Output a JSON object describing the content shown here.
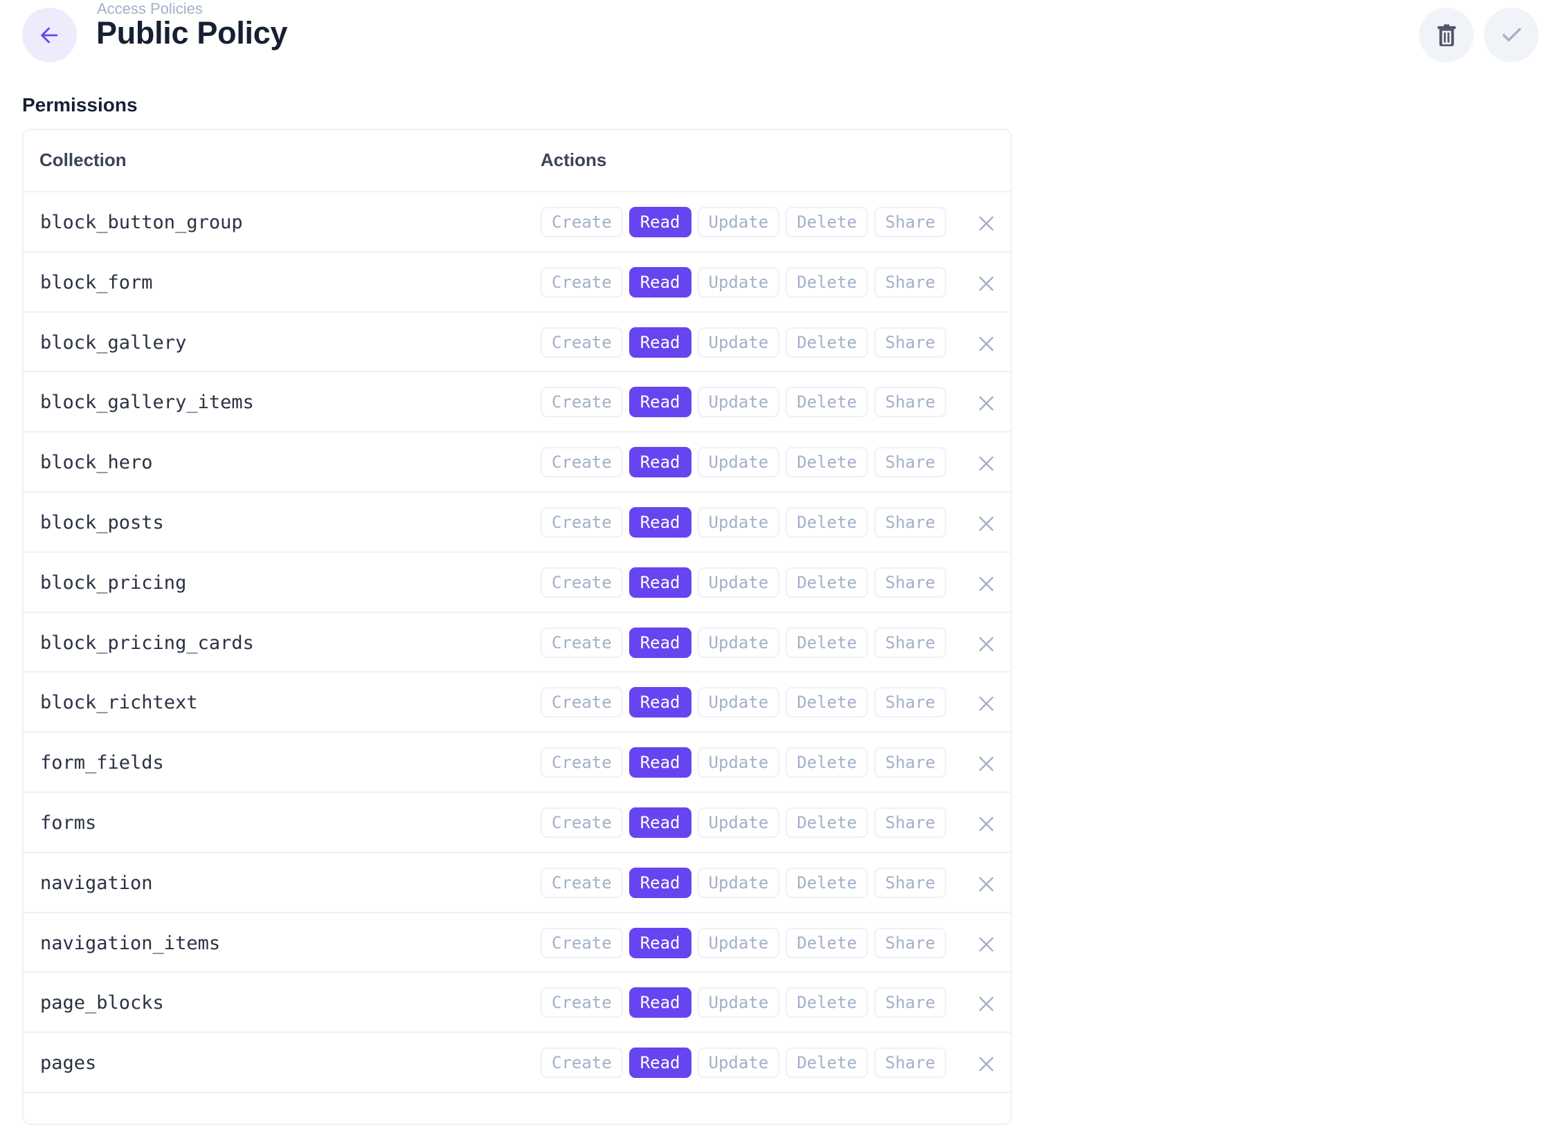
{
  "header": {
    "breadcrumb": "Access Policies",
    "title": "Public Policy",
    "back_icon": "arrow-left-icon",
    "delete_icon": "trash-icon",
    "save_icon": "check-icon"
  },
  "permissions": {
    "section_title": "Permissions",
    "columns": {
      "collection": "Collection",
      "actions": "Actions"
    },
    "action_labels": [
      "Create",
      "Read",
      "Update",
      "Delete",
      "Share"
    ],
    "rows": [
      {
        "collection": "block_button_group",
        "enabled": [
          "Read"
        ]
      },
      {
        "collection": "block_form",
        "enabled": [
          "Read"
        ]
      },
      {
        "collection": "block_gallery",
        "enabled": [
          "Read"
        ]
      },
      {
        "collection": "block_gallery_items",
        "enabled": [
          "Read"
        ]
      },
      {
        "collection": "block_hero",
        "enabled": [
          "Read"
        ]
      },
      {
        "collection": "block_posts",
        "enabled": [
          "Read"
        ]
      },
      {
        "collection": "block_pricing",
        "enabled": [
          "Read"
        ]
      },
      {
        "collection": "block_pricing_cards",
        "enabled": [
          "Read"
        ]
      },
      {
        "collection": "block_richtext",
        "enabled": [
          "Read"
        ]
      },
      {
        "collection": "form_fields",
        "enabled": [
          "Read"
        ]
      },
      {
        "collection": "forms",
        "enabled": [
          "Read"
        ]
      },
      {
        "collection": "navigation",
        "enabled": [
          "Read"
        ]
      },
      {
        "collection": "navigation_items",
        "enabled": [
          "Read"
        ]
      },
      {
        "collection": "page_blocks",
        "enabled": [
          "Read"
        ]
      },
      {
        "collection": "pages",
        "enabled": [
          "Read"
        ]
      }
    ]
  },
  "colors": {
    "accent": "#6644f0",
    "muted": "#a2b0c8",
    "text": "#172033",
    "border": "#eef1f6"
  }
}
